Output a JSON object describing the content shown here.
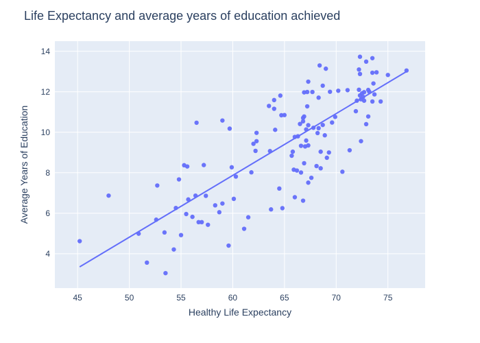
{
  "chart_data": {
    "type": "scatter",
    "title": "Life Expectancy and average years of education achieved",
    "xlabel": "Healthy Life Expectancy",
    "ylabel": "Average Years of Education",
    "xlim": [
      42.8,
      78.6
    ],
    "ylim": [
      2.3,
      14.5
    ],
    "xticks": [
      45,
      50,
      55,
      60,
      65,
      70,
      75
    ],
    "yticks": [
      4,
      6,
      8,
      10,
      12,
      14
    ],
    "grid": true,
    "legend": "none",
    "colors": {
      "plot_bg": "#e5ecf6",
      "grid": "#ffffff",
      "marker": "#636efa",
      "text": "#2a3f5f"
    },
    "trendline": {
      "x": [
        45.2,
        76.8
      ],
      "y": [
        3.35,
        13.0
      ]
    },
    "points": [
      [
        45.2,
        4.62
      ],
      [
        48.0,
        6.87
      ],
      [
        50.9,
        4.99
      ],
      [
        51.7,
        3.56
      ],
      [
        52.6,
        5.68
      ],
      [
        52.7,
        7.37
      ],
      [
        53.4,
        5.05
      ],
      [
        53.5,
        3.04
      ],
      [
        54.3,
        4.21
      ],
      [
        54.5,
        6.26
      ],
      [
        54.8,
        7.67
      ],
      [
        55.0,
        4.92
      ],
      [
        55.3,
        8.37
      ],
      [
        55.5,
        5.96
      ],
      [
        55.6,
        8.31
      ],
      [
        55.7,
        6.68
      ],
      [
        56.1,
        5.82
      ],
      [
        56.4,
        6.87
      ],
      [
        56.5,
        10.47
      ],
      [
        56.7,
        5.56
      ],
      [
        57.0,
        5.56
      ],
      [
        57.2,
        8.38
      ],
      [
        57.4,
        6.86
      ],
      [
        57.6,
        5.43
      ],
      [
        58.3,
        6.39
      ],
      [
        58.7,
        6.05
      ],
      [
        59.0,
        10.58
      ],
      [
        59.0,
        6.48
      ],
      [
        59.6,
        4.4
      ],
      [
        59.7,
        10.18
      ],
      [
        59.9,
        8.27
      ],
      [
        60.1,
        6.71
      ],
      [
        60.3,
        7.81
      ],
      [
        61.1,
        5.23
      ],
      [
        61.5,
        5.8
      ],
      [
        61.8,
        8.02
      ],
      [
        62.0,
        9.43
      ],
      [
        62.2,
        9.08
      ],
      [
        62.3,
        9.56
      ],
      [
        62.3,
        9.97
      ],
      [
        63.5,
        11.3
      ],
      [
        63.6,
        9.07
      ],
      [
        63.7,
        6.19
      ],
      [
        64.0,
        11.59
      ],
      [
        64.0,
        11.16
      ],
      [
        64.1,
        10.12
      ],
      [
        64.5,
        7.22
      ],
      [
        64.6,
        11.81
      ],
      [
        64.7,
        10.84
      ],
      [
        64.8,
        6.25
      ],
      [
        65.0,
        10.85
      ],
      [
        65.7,
        8.84
      ],
      [
        65.8,
        9.04
      ],
      [
        65.9,
        8.15
      ],
      [
        66.0,
        6.79
      ],
      [
        66.0,
        9.77
      ],
      [
        66.2,
        8.11
      ],
      [
        66.3,
        9.8
      ],
      [
        66.5,
        10.41
      ],
      [
        66.6,
        8.01
      ],
      [
        66.6,
        9.33
      ],
      [
        66.8,
        10.54
      ],
      [
        66.8,
        6.62
      ],
      [
        66.8,
        10.71
      ],
      [
        66.9,
        10.78
      ],
      [
        66.9,
        8.47
      ],
      [
        66.9,
        11.97
      ],
      [
        67.0,
        9.3
      ],
      [
        67.1,
        9.59
      ],
      [
        67.1,
        10.14
      ],
      [
        67.2,
        11.99
      ],
      [
        67.2,
        11.28
      ],
      [
        67.3,
        10.35
      ],
      [
        67.3,
        7.51
      ],
      [
        67.3,
        12.5
      ],
      [
        67.3,
        9.35
      ],
      [
        67.6,
        7.75
      ],
      [
        67.7,
        11.99
      ],
      [
        67.8,
        10.22
      ],
      [
        68.1,
        8.33
      ],
      [
        68.2,
        9.96
      ],
      [
        68.3,
        11.71
      ],
      [
        68.3,
        10.2
      ],
      [
        68.4,
        13.3
      ],
      [
        68.5,
        9.04
      ],
      [
        68.5,
        8.22
      ],
      [
        68.7,
        10.36
      ],
      [
        68.7,
        12.3
      ],
      [
        68.9,
        9.85
      ],
      [
        69.0,
        13.14
      ],
      [
        69.1,
        8.74
      ],
      [
        69.3,
        9.0
      ],
      [
        69.4,
        12.0
      ],
      [
        69.6,
        10.48
      ],
      [
        69.9,
        10.76
      ],
      [
        70.2,
        12.05
      ],
      [
        70.6,
        8.05
      ],
      [
        71.1,
        12.08
      ],
      [
        71.3,
        9.11
      ],
      [
        71.9,
        11.04
      ],
      [
        72.0,
        11.56
      ],
      [
        72.2,
        12.1
      ],
      [
        72.2,
        13.1
      ],
      [
        72.3,
        13.73
      ],
      [
        72.3,
        12.88
      ],
      [
        72.3,
        11.82
      ],
      [
        72.4,
        11.63
      ],
      [
        72.4,
        9.56
      ],
      [
        72.5,
        11.92
      ],
      [
        72.6,
        11.75
      ],
      [
        72.7,
        11.98
      ],
      [
        72.7,
        11.56
      ],
      [
        72.9,
        10.4
      ],
      [
        72.9,
        13.49
      ],
      [
        73.1,
        10.78
      ],
      [
        73.1,
        12.09
      ],
      [
        73.2,
        12.0
      ],
      [
        73.5,
        13.66
      ],
      [
        73.5,
        12.94
      ],
      [
        73.5,
        11.52
      ],
      [
        73.6,
        12.41
      ],
      [
        73.7,
        11.87
      ],
      [
        73.9,
        12.96
      ],
      [
        74.3,
        11.52
      ],
      [
        75.0,
        12.83
      ],
      [
        76.8,
        13.05
      ]
    ]
  }
}
